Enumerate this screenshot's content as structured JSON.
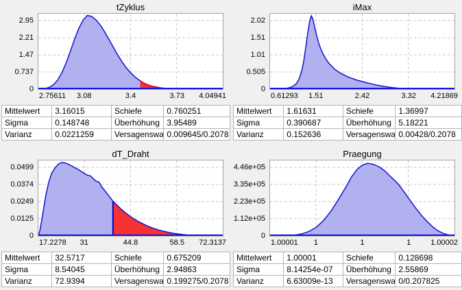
{
  "colors": {
    "background": "#f0f0f0",
    "plot_bg": "#ffffff",
    "plot_border": "#a3a3a3",
    "grid": "#c9c9c9",
    "axis": "#1414e6",
    "fill": "#b1b1ef",
    "stroke": "#1212cf",
    "red_fill": "#f63232",
    "red_stroke": "#dd0000",
    "vline": "#0000c8",
    "table_border": "#b4b4b4",
    "text": "#000000"
  },
  "chart_data": [
    {
      "type": "area",
      "title": "tZyklus",
      "legend_position": "none",
      "grid": true,
      "x_tick_labels": [
        "2.75611",
        "3.08",
        "3.4",
        "3.73",
        "4.04941"
      ],
      "y_tick_labels": [
        "2.95",
        "2.21",
        "1.47",
        "0.737",
        "0"
      ],
      "y_tick_values": [
        2.95,
        2.21,
        1.47,
        0.737,
        0
      ],
      "x_min": 2.75611,
      "x_max": 4.04941,
      "y_max": 3.245,
      "points": [
        [
          2.7561,
          0
        ],
        [
          2.8,
          0.02
        ],
        [
          2.83,
          0.07
        ],
        [
          2.86,
          0.18
        ],
        [
          2.89,
          0.38
        ],
        [
          2.92,
          0.7
        ],
        [
          2.95,
          1.12
        ],
        [
          2.98,
          1.62
        ],
        [
          3.01,
          2.15
        ],
        [
          3.04,
          2.62
        ],
        [
          3.07,
          2.97
        ],
        [
          3.1,
          3.17
        ],
        [
          3.13,
          3.13
        ],
        [
          3.16,
          2.98
        ],
        [
          3.19,
          2.76
        ],
        [
          3.22,
          2.47
        ],
        [
          3.25,
          2.15
        ],
        [
          3.28,
          1.82
        ],
        [
          3.31,
          1.5
        ],
        [
          3.34,
          1.2
        ],
        [
          3.37,
          0.94
        ],
        [
          3.4,
          0.73
        ],
        [
          3.43,
          0.55
        ],
        [
          3.46,
          0.4
        ],
        [
          3.49,
          0.28
        ],
        [
          3.52,
          0.19
        ],
        [
          3.55,
          0.13
        ],
        [
          3.58,
          0.09
        ],
        [
          3.61,
          0.06
        ],
        [
          3.64,
          0.04
        ],
        [
          3.68,
          0.025
        ],
        [
          3.73,
          0.013
        ],
        [
          3.8,
          0.006
        ],
        [
          3.9,
          0.002
        ],
        [
          4.0494,
          0
        ]
      ],
      "highlight": {
        "from": 3.47,
        "to": 3.63,
        "red_outline": true
      },
      "stats": [
        [
          "Mittelwert",
          "3.16015",
          "Schiefe",
          "0.760251"
        ],
        [
          "Sigma",
          "0.148748",
          "Überhöhung",
          "3.95489"
        ],
        [
          "Varianz",
          "0.0221259",
          "Versagenswahr",
          "0.009645/0.2078"
        ]
      ]
    },
    {
      "type": "area",
      "title": "iMax",
      "legend_position": "none",
      "grid": true,
      "x_tick_labels": [
        "0.61293",
        "1.51",
        "2.42",
        "3.32",
        "4.21869"
      ],
      "y_tick_labels": [
        "2.02",
        "1.51",
        "1.01",
        "0.505",
        "0"
      ],
      "y_tick_values": [
        2.02,
        1.51,
        1.01,
        0.505,
        0
      ],
      "x_min": 0.61293,
      "x_max": 4.21869,
      "y_max": 2.222,
      "points": [
        [
          0.6129,
          0
        ],
        [
          0.75,
          0.003
        ],
        [
          0.85,
          0.012
        ],
        [
          0.95,
          0.028
        ],
        [
          1.02,
          0.055
        ],
        [
          1.08,
          0.1
        ],
        [
          1.13,
          0.17
        ],
        [
          1.18,
          0.3
        ],
        [
          1.23,
          0.52
        ],
        [
          1.27,
          0.82
        ],
        [
          1.31,
          1.22
        ],
        [
          1.35,
          1.66
        ],
        [
          1.39,
          2.02
        ],
        [
          1.42,
          2.16
        ],
        [
          1.45,
          2.06
        ],
        [
          1.48,
          1.86
        ],
        [
          1.52,
          1.6
        ],
        [
          1.56,
          1.38
        ],
        [
          1.6,
          1.2
        ],
        [
          1.65,
          1.03
        ],
        [
          1.7,
          0.9
        ],
        [
          1.76,
          0.77
        ],
        [
          1.82,
          0.67
        ],
        [
          1.89,
          0.57
        ],
        [
          1.96,
          0.5
        ],
        [
          2.04,
          0.43
        ],
        [
          2.12,
          0.37
        ],
        [
          2.21,
          0.32
        ],
        [
          2.3,
          0.27
        ],
        [
          2.4,
          0.23
        ],
        [
          2.5,
          0.19
        ],
        [
          2.6,
          0.155
        ],
        [
          2.7,
          0.12
        ],
        [
          2.8,
          0.09
        ],
        [
          2.9,
          0.065
        ],
        [
          3.0,
          0.045
        ],
        [
          3.1,
          0.03
        ],
        [
          3.2,
          0.02
        ],
        [
          3.35,
          0.01
        ],
        [
          3.5,
          0.005
        ],
        [
          3.7,
          0.002
        ],
        [
          4.2187,
          0
        ]
      ],
      "highlight": null,
      "stats": [
        [
          "Mittelwert",
          "1.61631",
          "Schiefe",
          "1.36997"
        ],
        [
          "Sigma",
          "0.390687",
          "Überhöhung",
          "5.18221"
        ],
        [
          "Varianz",
          "0.152636",
          "Versagenswahr",
          "0.00428/0.2078"
        ]
      ]
    },
    {
      "type": "area",
      "title": "dT_Draht",
      "legend_position": "none",
      "grid": true,
      "x_tick_labels": [
        "17.2278",
        "31",
        "44.8",
        "58.5",
        "72.3137"
      ],
      "y_tick_labels": [
        "0.0499",
        "0.0374",
        "0.0249",
        "0.0125",
        "0"
      ],
      "y_tick_values": [
        0.0499,
        0.0374,
        0.0249,
        0.0125,
        0
      ],
      "x_min": 17.2278,
      "x_max": 72.3137,
      "y_max": 0.0549,
      "points": [
        [
          17.228,
          0
        ],
        [
          17.7,
          0.004
        ],
        [
          18.2,
          0.011
        ],
        [
          18.8,
          0.02
        ],
        [
          19.5,
          0.03
        ],
        [
          20.3,
          0.039
        ],
        [
          21.2,
          0.0455
        ],
        [
          22.2,
          0.0495
        ],
        [
          23.2,
          0.0522
        ],
        [
          24.2,
          0.0534
        ],
        [
          25.2,
          0.0531
        ],
        [
          26.2,
          0.0521
        ],
        [
          27.2,
          0.0508
        ],
        [
          28.2,
          0.0495
        ],
        [
          29.2,
          0.0482
        ],
        [
          30.2,
          0.0466
        ],
        [
          31.2,
          0.045
        ],
        [
          32.0,
          0.044
        ],
        [
          32.8,
          0.0436
        ],
        [
          33.6,
          0.0416
        ],
        [
          34.5,
          0.0398
        ],
        [
          35.3,
          0.0392
        ],
        [
          36.2,
          0.0355
        ],
        [
          37.3,
          0.0322
        ],
        [
          38.4,
          0.0288
        ],
        [
          39.5,
          0.0252
        ],
        [
          40.6,
          0.0226
        ],
        [
          41.8,
          0.0198
        ],
        [
          43.0,
          0.0172
        ],
        [
          44.3,
          0.0148
        ],
        [
          45.6,
          0.0126
        ],
        [
          47.0,
          0.0106
        ],
        [
          48.5,
          0.0087
        ],
        [
          50.0,
          0.007
        ],
        [
          51.5,
          0.0056
        ],
        [
          53.0,
          0.0044
        ],
        [
          54.6,
          0.0034
        ],
        [
          56.2,
          0.0025
        ],
        [
          58.0,
          0.0017
        ],
        [
          59.8,
          0.0011
        ],
        [
          61.5,
          0.0007
        ],
        [
          63.5,
          0.0004
        ],
        [
          66.0,
          0.0002
        ],
        [
          72.314,
          0
        ]
      ],
      "highlight": {
        "from": 39.5,
        "to": 59.5,
        "vline": true
      },
      "stats": [
        [
          "Mittelwert",
          "32.5717",
          "Schiefe",
          "0.675209"
        ],
        [
          "Sigma",
          "8.54045",
          "Überhöhung",
          "2.94863"
        ],
        [
          "Varianz",
          "72.9394",
          "Versagenswahr",
          "0.199275/0.2078"
        ]
      ]
    },
    {
      "type": "area",
      "title": "Praegung",
      "legend_position": "none",
      "grid": true,
      "x_tick_labels": [
        "1.00001",
        "1",
        "1",
        "1",
        "1.00002"
      ],
      "y_tick_labels": [
        "4.46e+05",
        "3.35e+05",
        "2.23e+05",
        "1.12e+05",
        "0"
      ],
      "y_tick_values": [
        446000,
        335000,
        223000,
        112000,
        0
      ],
      "x_min": 0,
      "x_max": 1,
      "y_max": 490600,
      "points": [
        [
          0,
          0
        ],
        [
          0.05,
          300
        ],
        [
          0.09,
          1200
        ],
        [
          0.13,
          4500
        ],
        [
          0.17,
          12000
        ],
        [
          0.21,
          28000
        ],
        [
          0.25,
          55000
        ],
        [
          0.29,
          100000
        ],
        [
          0.33,
          160000
        ],
        [
          0.37,
          235000
        ],
        [
          0.41,
          315000
        ],
        [
          0.44,
          380000
        ],
        [
          0.47,
          430000
        ],
        [
          0.5,
          460000
        ],
        [
          0.53,
          472000
        ],
        [
          0.56,
          465000
        ],
        [
          0.59,
          450000
        ],
        [
          0.62,
          425000
        ],
        [
          0.65,
          390000
        ],
        [
          0.68,
          355000
        ],
        [
          0.7,
          330000
        ],
        [
          0.73,
          280000
        ],
        [
          0.76,
          230000
        ],
        [
          0.79,
          180000
        ],
        [
          0.82,
          135000
        ],
        [
          0.85,
          95000
        ],
        [
          0.88,
          60000
        ],
        [
          0.91,
          33000
        ],
        [
          0.94,
          15000
        ],
        [
          0.97,
          5000
        ],
        [
          1,
          0
        ]
      ],
      "highlight": null,
      "stats": [
        [
          "Mittelwert",
          "1.00001",
          "Schiefe",
          "0.128698"
        ],
        [
          "Sigma",
          "8.14254e-07",
          "Überhöhung",
          "2.55869"
        ],
        [
          "Varianz",
          "6.63009e-13",
          "Versagenswahr",
          "0/0.207825"
        ]
      ]
    }
  ]
}
